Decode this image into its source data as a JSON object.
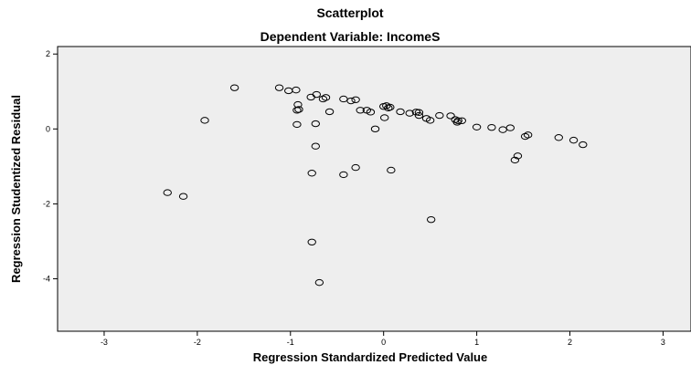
{
  "chart_data": {
    "type": "scatter",
    "title": "Scatterplot",
    "subtitle": "Dependent Variable: IncomeS",
    "xlabel": "Regression Standardized Predicted Value",
    "ylabel": "Regression Studentized Residual",
    "xlim": [
      -3.5,
      3.3
    ],
    "ylim": [
      -5.4,
      2.2
    ],
    "xticks": [
      -3,
      -2,
      -1,
      0,
      1,
      2,
      3
    ],
    "yticks": [
      2,
      0,
      -2,
      -4
    ],
    "xtick_labels": [
      "-3",
      "-2",
      "-1",
      "0",
      "1",
      "2",
      "3"
    ],
    "ytick_labels": [
      "2",
      "0",
      "-2",
      "-4"
    ],
    "grid": false,
    "plot_background": "#eeeeee",
    "marker": "open-circle",
    "marker_color": "#000000",
    "points": [
      {
        "x": -2.32,
        "y": -1.7
      },
      {
        "x": -2.15,
        "y": -1.8
      },
      {
        "x": -1.92,
        "y": 0.23
      },
      {
        "x": -1.6,
        "y": 1.1
      },
      {
        "x": -1.12,
        "y": 1.1
      },
      {
        "x": -1.02,
        "y": 1.02
      },
      {
        "x": -0.94,
        "y": 1.04
      },
      {
        "x": -0.92,
        "y": 0.65
      },
      {
        "x": -0.93,
        "y": 0.5
      },
      {
        "x": -0.91,
        "y": 0.52
      },
      {
        "x": -0.93,
        "y": 0.12
      },
      {
        "x": -0.78,
        "y": 0.85
      },
      {
        "x": -0.72,
        "y": 0.92
      },
      {
        "x": -0.65,
        "y": 0.8
      },
      {
        "x": -0.62,
        "y": 0.84
      },
      {
        "x": -0.58,
        "y": 0.46
      },
      {
        "x": -0.73,
        "y": 0.14
      },
      {
        "x": -0.73,
        "y": -0.46
      },
      {
        "x": -0.77,
        "y": -1.18
      },
      {
        "x": -0.77,
        "y": -3.02
      },
      {
        "x": -0.69,
        "y": -4.1
      },
      {
        "x": -0.43,
        "y": 0.8
      },
      {
        "x": -0.35,
        "y": 0.75
      },
      {
        "x": -0.3,
        "y": 0.78
      },
      {
        "x": -0.25,
        "y": 0.5
      },
      {
        "x": -0.18,
        "y": 0.5
      },
      {
        "x": -0.14,
        "y": 0.45
      },
      {
        "x": -0.09,
        "y": 0.0
      },
      {
        "x": -0.3,
        "y": -1.03
      },
      {
        "x": -0.43,
        "y": -1.22
      },
      {
        "x": 0.0,
        "y": 0.6
      },
      {
        "x": 0.03,
        "y": 0.62
      },
      {
        "x": 0.05,
        "y": 0.56
      },
      {
        "x": 0.07,
        "y": 0.58
      },
      {
        "x": 0.01,
        "y": 0.3
      },
      {
        "x": 0.08,
        "y": -1.1
      },
      {
        "x": 0.18,
        "y": 0.46
      },
      {
        "x": 0.28,
        "y": 0.42
      },
      {
        "x": 0.35,
        "y": 0.45
      },
      {
        "x": 0.38,
        "y": 0.44
      },
      {
        "x": 0.38,
        "y": 0.36
      },
      {
        "x": 0.46,
        "y": 0.28
      },
      {
        "x": 0.5,
        "y": 0.23
      },
      {
        "x": 0.6,
        "y": 0.36
      },
      {
        "x": 0.72,
        "y": 0.35
      },
      {
        "x": 0.77,
        "y": 0.25
      },
      {
        "x": 0.8,
        "y": 0.22
      },
      {
        "x": 0.79,
        "y": 0.18
      },
      {
        "x": 0.84,
        "y": 0.22
      },
      {
        "x": 0.51,
        "y": -2.42
      },
      {
        "x": 1.0,
        "y": 0.05
      },
      {
        "x": 1.16,
        "y": 0.04
      },
      {
        "x": 1.28,
        "y": -0.02
      },
      {
        "x": 1.36,
        "y": 0.03
      },
      {
        "x": 1.52,
        "y": -0.2
      },
      {
        "x": 1.55,
        "y": -0.16
      },
      {
        "x": 1.44,
        "y": -0.72
      },
      {
        "x": 1.41,
        "y": -0.83
      },
      {
        "x": 1.88,
        "y": -0.23
      },
      {
        "x": 2.04,
        "y": -0.3
      },
      {
        "x": 2.14,
        "y": -0.42
      }
    ]
  }
}
